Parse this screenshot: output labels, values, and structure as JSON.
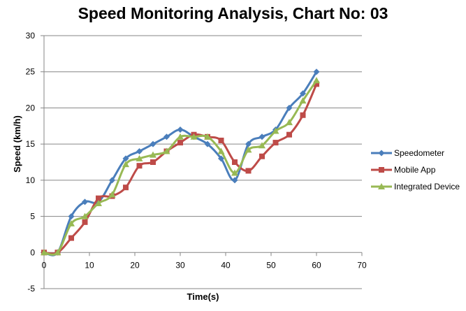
{
  "chart_data": {
    "type": "line",
    "title": "Speed Monitoring Analysis, Chart No: 03",
    "xlabel": "Time(s)",
    "ylabel": "Speed (km/h)",
    "xlim": [
      0,
      70
    ],
    "ylim": [
      -5,
      30
    ],
    "x_ticks": [
      "0",
      "10",
      "20",
      "30",
      "40",
      "50",
      "60",
      "70"
    ],
    "y_ticks": [
      "-5",
      "0",
      "5",
      "10",
      "15",
      "20",
      "25",
      "30"
    ],
    "grid": "horizontal",
    "legend_position": "right",
    "x": [
      0,
      3,
      6,
      9,
      12,
      15,
      18,
      21,
      24,
      27,
      30,
      33,
      36,
      39,
      42,
      45,
      48,
      51,
      54,
      57,
      60
    ],
    "series": [
      {
        "name": "Speedometer",
        "color": "#4a7ebb",
        "marker": "diamond",
        "values": [
          0,
          0,
          5,
          7,
          7,
          10,
          13,
          14,
          15,
          16,
          17,
          16,
          15,
          13,
          10,
          15,
          16,
          17,
          20,
          22,
          25
        ]
      },
      {
        "name": "Mobile App",
        "color": "#be4b48",
        "marker": "square",
        "values": [
          0,
          0,
          2,
          4.2,
          7.5,
          7.8,
          9,
          12,
          12.5,
          14,
          15.2,
          16.3,
          16,
          15.5,
          12.5,
          11.3,
          13.3,
          15.2,
          16.3,
          19,
          23.3
        ]
      },
      {
        "name": "Integrated Device",
        "color": "#98b954",
        "marker": "triangle",
        "values": [
          0,
          0,
          4,
          5,
          6.8,
          8,
          12.2,
          13,
          13.5,
          14,
          16,
          16,
          16,
          14,
          11,
          14.2,
          14.8,
          16.8,
          18,
          21,
          23.8
        ]
      }
    ]
  }
}
